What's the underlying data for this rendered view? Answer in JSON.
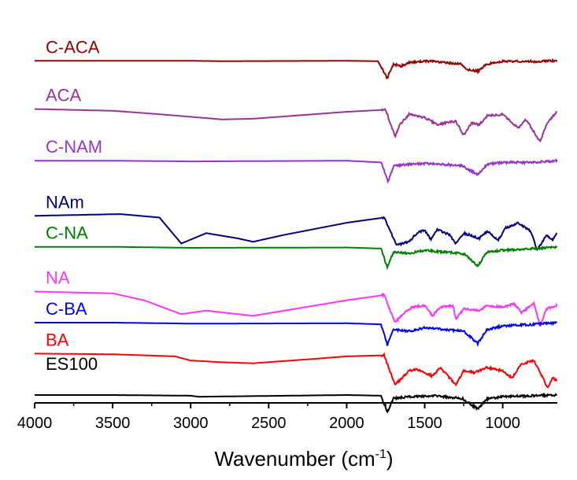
{
  "chart_data": {
    "type": "line",
    "x_axis": {
      "title": "Wavenumber (cm",
      "title_superscript": "-1",
      "title_suffix": ")",
      "range": [
        4000,
        650
      ],
      "reversed": true,
      "ticks": [
        4000,
        3500,
        3000,
        2500,
        2000,
        1500,
        1000
      ],
      "tick_labels": [
        "4000",
        "3500",
        "3000",
        "2500",
        "2000",
        "1500",
        "1000"
      ]
    },
    "y_axis": {
      "visible": false,
      "range": [
        0,
        10.6
      ]
    },
    "grid": false,
    "legend": "series labels printed above each trace on the left",
    "series": [
      {
        "name": "C-ACA",
        "color": "#990000",
        "offset": 9.2,
        "points": [
          [
            4000,
            1.0
          ],
          [
            3500,
            1.0
          ],
          [
            3000,
            1.0
          ],
          [
            2800,
            0.99
          ],
          [
            2000,
            1.0
          ],
          [
            1800,
            0.99
          ],
          [
            1740,
            0.5
          ],
          [
            1700,
            0.9
          ],
          [
            1650,
            0.85
          ],
          [
            1600,
            0.95
          ],
          [
            1500,
            1.0
          ],
          [
            1260,
            0.9
          ],
          [
            1230,
            0.75
          ],
          [
            1160,
            0.7
          ],
          [
            1100,
            0.9
          ],
          [
            1000,
            0.98
          ],
          [
            800,
            0.98
          ],
          [
            650,
            1.0
          ]
        ]
      },
      {
        "name": "ACA",
        "color": "#993399",
        "offset": 7.8,
        "points": [
          [
            4000,
            1.0
          ],
          [
            3500,
            0.95
          ],
          [
            3200,
            0.85
          ],
          [
            2800,
            0.7
          ],
          [
            2600,
            0.72
          ],
          [
            2300,
            0.82
          ],
          [
            2000,
            0.92
          ],
          [
            1750,
            0.98
          ],
          [
            1690,
            0.2
          ],
          [
            1660,
            0.55
          ],
          [
            1600,
            0.85
          ],
          [
            1500,
            0.75
          ],
          [
            1420,
            0.55
          ],
          [
            1300,
            0.65
          ],
          [
            1250,
            0.25
          ],
          [
            1200,
            0.6
          ],
          [
            1150,
            0.55
          ],
          [
            1100,
            0.8
          ],
          [
            1000,
            0.85
          ],
          [
            900,
            0.45
          ],
          [
            850,
            0.7
          ],
          [
            760,
            0.05
          ],
          [
            720,
            0.55
          ],
          [
            650,
            0.95
          ]
        ]
      },
      {
        "name": "C-NAM",
        "color": "#9933cc",
        "offset": 6.3,
        "points": [
          [
            4000,
            1.0
          ],
          [
            3500,
            1.0
          ],
          [
            3000,
            0.98
          ],
          [
            2000,
            1.0
          ],
          [
            1780,
            0.95
          ],
          [
            1735,
            0.4
          ],
          [
            1700,
            0.85
          ],
          [
            1600,
            0.9
          ],
          [
            1450,
            0.92
          ],
          [
            1260,
            0.85
          ],
          [
            1160,
            0.6
          ],
          [
            1100,
            0.9
          ],
          [
            1000,
            0.95
          ],
          [
            800,
            0.95
          ],
          [
            650,
            1.0
          ]
        ]
      },
      {
        "name": "NAm",
        "color": "#000080",
        "offset": 4.7,
        "points": [
          [
            4000,
            1.0
          ],
          [
            3450,
            1.05
          ],
          [
            3200,
            0.95
          ],
          [
            3060,
            0.2
          ],
          [
            2900,
            0.5
          ],
          [
            2700,
            0.35
          ],
          [
            2600,
            0.25
          ],
          [
            2400,
            0.45
          ],
          [
            2000,
            0.8
          ],
          [
            1760,
            0.95
          ],
          [
            1680,
            0.15
          ],
          [
            1600,
            0.25
          ],
          [
            1550,
            0.5
          ],
          [
            1500,
            0.6
          ],
          [
            1460,
            0.3
          ],
          [
            1420,
            0.6
          ],
          [
            1340,
            0.45
          ],
          [
            1300,
            0.2
          ],
          [
            1250,
            0.5
          ],
          [
            1150,
            0.35
          ],
          [
            1100,
            0.55
          ],
          [
            1030,
            0.3
          ],
          [
            980,
            0.65
          ],
          [
            900,
            0.8
          ],
          [
            820,
            0.55
          ],
          [
            780,
            0.0
          ],
          [
            720,
            0.45
          ],
          [
            680,
            0.3
          ],
          [
            650,
            0.5
          ]
        ]
      },
      {
        "name": "C-NA",
        "color": "#008000",
        "offset": 3.8,
        "points": [
          [
            4000,
            1.0
          ],
          [
            3500,
            1.0
          ],
          [
            3000,
            0.97
          ],
          [
            2000,
            0.98
          ],
          [
            1780,
            0.95
          ],
          [
            1740,
            0.4
          ],
          [
            1700,
            0.85
          ],
          [
            1600,
            0.8
          ],
          [
            1500,
            0.9
          ],
          [
            1250,
            0.8
          ],
          [
            1160,
            0.45
          ],
          [
            1100,
            0.85
          ],
          [
            1000,
            0.9
          ],
          [
            800,
            0.95
          ],
          [
            650,
            1.0
          ]
        ]
      },
      {
        "name": "NA",
        "color": "#ff33ff",
        "offset": 2.5,
        "points": [
          [
            4000,
            1.0
          ],
          [
            3500,
            0.95
          ],
          [
            3300,
            0.75
          ],
          [
            3060,
            0.35
          ],
          [
            2900,
            0.45
          ],
          [
            2700,
            0.35
          ],
          [
            2600,
            0.3
          ],
          [
            2400,
            0.45
          ],
          [
            2000,
            0.75
          ],
          [
            1760,
            0.9
          ],
          [
            1690,
            0.1
          ],
          [
            1640,
            0.35
          ],
          [
            1580,
            0.55
          ],
          [
            1500,
            0.6
          ],
          [
            1450,
            0.3
          ],
          [
            1400,
            0.55
          ],
          [
            1320,
            0.6
          ],
          [
            1300,
            0.2
          ],
          [
            1250,
            0.5
          ],
          [
            1150,
            0.45
          ],
          [
            1100,
            0.6
          ],
          [
            1000,
            0.55
          ],
          [
            930,
            0.65
          ],
          [
            880,
            0.4
          ],
          [
            800,
            0.65
          ],
          [
            760,
            0.0
          ],
          [
            720,
            0.5
          ],
          [
            650,
            0.6
          ]
        ]
      },
      {
        "name": "C-BA",
        "color": "#0000ff",
        "offset": 1.6,
        "points": [
          [
            4000,
            1.0
          ],
          [
            3500,
            1.0
          ],
          [
            3000,
            0.97
          ],
          [
            2000,
            0.98
          ],
          [
            1780,
            0.95
          ],
          [
            1740,
            0.35
          ],
          [
            1700,
            0.8
          ],
          [
            1600,
            0.75
          ],
          [
            1500,
            0.85
          ],
          [
            1250,
            0.75
          ],
          [
            1160,
            0.4
          ],
          [
            1100,
            0.8
          ],
          [
            1000,
            0.9
          ],
          [
            800,
            0.95
          ],
          [
            650,
            1.0
          ]
        ]
      },
      {
        "name": "BA",
        "color": "#ff0000",
        "offset": 0.7,
        "points": [
          [
            4000,
            1.0
          ],
          [
            3500,
            0.98
          ],
          [
            3100,
            0.92
          ],
          [
            3000,
            0.8
          ],
          [
            2800,
            0.75
          ],
          [
            2600,
            0.72
          ],
          [
            2200,
            0.85
          ],
          [
            2000,
            0.92
          ],
          [
            1760,
            0.95
          ],
          [
            1690,
            0.1
          ],
          [
            1600,
            0.5
          ],
          [
            1550,
            0.55
          ],
          [
            1450,
            0.35
          ],
          [
            1400,
            0.6
          ],
          [
            1300,
            0.1
          ],
          [
            1250,
            0.5
          ],
          [
            1180,
            0.45
          ],
          [
            1100,
            0.6
          ],
          [
            1000,
            0.5
          ],
          [
            940,
            0.3
          ],
          [
            880,
            0.7
          ],
          [
            800,
            0.8
          ],
          [
            710,
            0.0
          ],
          [
            680,
            0.3
          ],
          [
            650,
            0.2
          ]
        ]
      },
      {
        "name": "ES100",
        "color": "#000000",
        "offset": 0.0,
        "points": [
          [
            4000,
            0.5
          ],
          [
            3500,
            0.5
          ],
          [
            3000,
            0.48
          ],
          [
            2950,
            0.45
          ],
          [
            2000,
            0.5
          ],
          [
            1780,
            0.48
          ],
          [
            1740,
            0.0
          ],
          [
            1700,
            0.4
          ],
          [
            1600,
            0.45
          ],
          [
            1450,
            0.48
          ],
          [
            1260,
            0.4
          ],
          [
            1160,
            0.1
          ],
          [
            1100,
            0.38
          ],
          [
            1000,
            0.45
          ],
          [
            800,
            0.48
          ],
          [
            650,
            0.5
          ]
        ]
      }
    ]
  }
}
